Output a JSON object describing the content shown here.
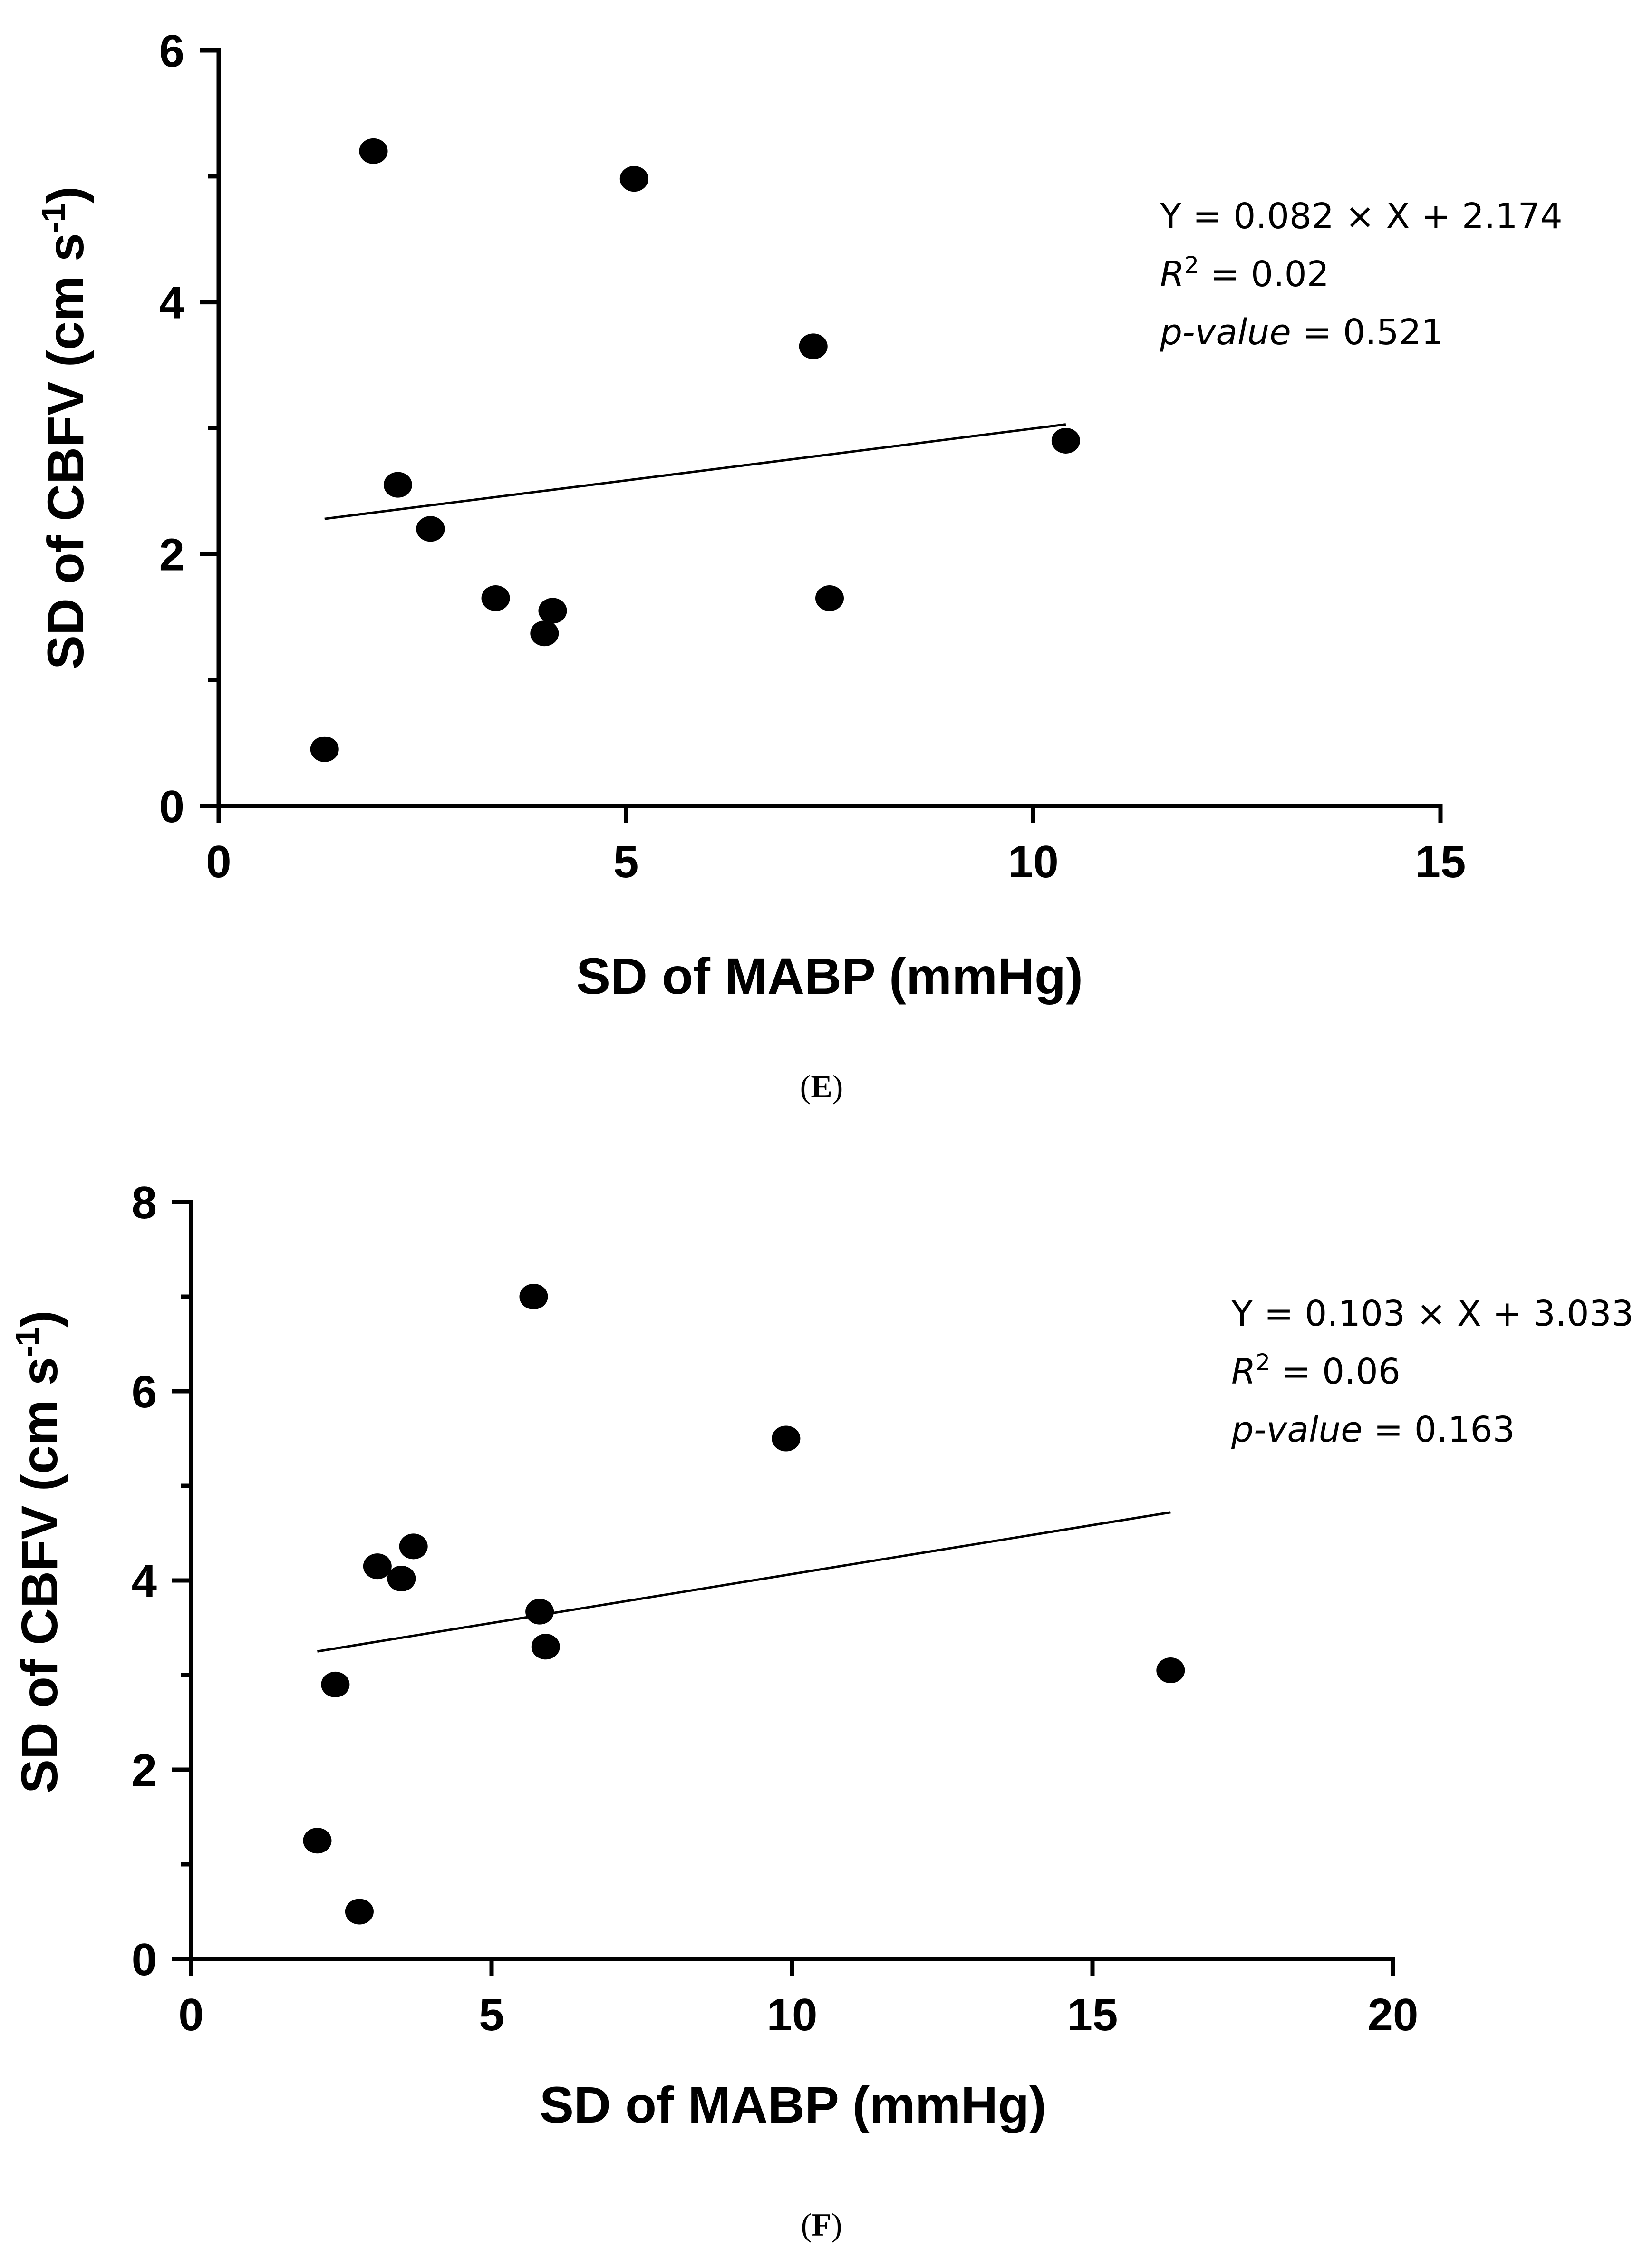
{
  "chart_data": [
    {
      "panel": "E",
      "type": "scatter",
      "xlabel": "SD of MABP (mmHg)",
      "ylabel_main": "SD of CBFV (cm s",
      "ylabel_sup": "-1",
      "ylabel_close": ")",
      "xlim": [
        0,
        15
      ],
      "ylim": [
        0,
        6
      ],
      "xticks": [
        0,
        5,
        10,
        15
      ],
      "yticks": [
        0,
        2,
        4,
        6
      ],
      "x_minor_ticks": [],
      "y_minor_ticks": [
        1,
        3,
        5
      ],
      "points": [
        {
          "x": 1.3,
          "y": 0.45
        },
        {
          "x": 1.9,
          "y": 5.2
        },
        {
          "x": 2.2,
          "y": 2.55
        },
        {
          "x": 2.6,
          "y": 2.2
        },
        {
          "x": 3.4,
          "y": 1.65
        },
        {
          "x": 4.0,
          "y": 1.37
        },
        {
          "x": 4.1,
          "y": 1.55
        },
        {
          "x": 5.1,
          "y": 4.98
        },
        {
          "x": 7.3,
          "y": 3.65
        },
        {
          "x": 7.5,
          "y": 1.65
        },
        {
          "x": 10.4,
          "y": 2.9
        }
      ],
      "fit_line": {
        "x_start": 1.3,
        "x_end": 10.4,
        "y_start": 2.28,
        "y_end": 3.03
      },
      "annotation": {
        "equation": "Y = 0.082 × X + 2.174",
        "r2_label": "R",
        "r2_sup": "2",
        "r2_value": " = 0.02",
        "p_label": "p-value",
        "p_value": " = 0.521"
      },
      "panel_label": {
        "open": "(",
        "letter": "E",
        "close": ")"
      }
    },
    {
      "panel": "F",
      "type": "scatter",
      "xlabel": "SD of MABP (mmHg)",
      "ylabel_main": "SD of CBFV (cm s",
      "ylabel_sup": "-1",
      "ylabel_close": ")",
      "xlim": [
        0,
        20
      ],
      "ylim": [
        0,
        8
      ],
      "xticks": [
        0,
        5,
        10,
        15,
        20
      ],
      "yticks": [
        0,
        2,
        4,
        6,
        8
      ],
      "x_minor_ticks": [],
      "y_minor_ticks": [
        1,
        3,
        5,
        7
      ],
      "points": [
        {
          "x": 2.1,
          "y": 1.25
        },
        {
          "x": 2.4,
          "y": 2.9
        },
        {
          "x": 2.8,
          "y": 0.5
        },
        {
          "x": 3.1,
          "y": 4.15
        },
        {
          "x": 3.5,
          "y": 4.02
        },
        {
          "x": 3.7,
          "y": 4.36
        },
        {
          "x": 5.7,
          "y": 7.0
        },
        {
          "x": 5.8,
          "y": 3.67
        },
        {
          "x": 5.9,
          "y": 3.3
        },
        {
          "x": 9.9,
          "y": 5.5
        },
        {
          "x": 16.3,
          "y": 3.05
        }
      ],
      "fit_line": {
        "x_start": 2.1,
        "x_end": 16.3,
        "y_start": 3.25,
        "y_end": 4.72
      },
      "annotation": {
        "equation": "Y = 0.103 × X + 3.033",
        "r2_label": "R",
        "r2_sup": "2",
        "r2_value": " = 0.06",
        "p_label": "p-value",
        "p_value": " = 0.163"
      },
      "panel_label": {
        "open": "(",
        "letter": "F",
        "close": ")"
      }
    }
  ]
}
